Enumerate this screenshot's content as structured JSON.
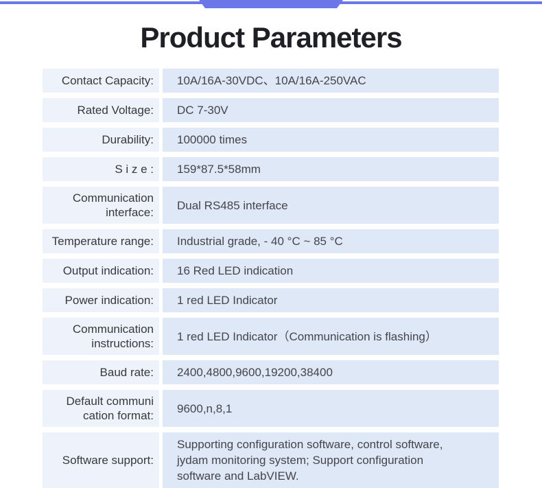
{
  "page": {
    "title": "Product Parameters",
    "accent_color": "#6B76E8",
    "label_bg_color": "#EEF2FB",
    "value_bg_color": "#DFE8F7"
  },
  "table": {
    "rows": [
      {
        "label": "Contact Capacity:",
        "value": "10A/16A-30VDC、10A/16A-250VAC"
      },
      {
        "label": "Rated Voltage:",
        "value": "DC 7-30V"
      },
      {
        "label": "Durability:",
        "value": "100000 times"
      },
      {
        "label": "S i z e :",
        "value": "159*87.5*58mm"
      },
      {
        "label": "Communication\ninterface:",
        "value": "Dual RS485 interface"
      },
      {
        "label": "Temperature range:",
        "value": "Industrial grade, - 40 °C ~ 85 °C"
      },
      {
        "label": "Output indication:",
        "value": "16 Red LED indication"
      },
      {
        "label": "Power indication:",
        "value": "1 red LED Indicator"
      },
      {
        "label": "Communication\ninstructions:",
        "value": "1 red LED Indicator（Communication is flashing）"
      },
      {
        "label": "Baud rate:",
        "value": "2400,4800,9600,19200,38400"
      },
      {
        "label": "Default communi\ncation format:",
        "value": "9600,n,8,1"
      },
      {
        "label": "Software support:",
        "value": "Supporting configuration software, control software, jydam monitoring system; Support configuration software and LabVIEW."
      }
    ]
  }
}
